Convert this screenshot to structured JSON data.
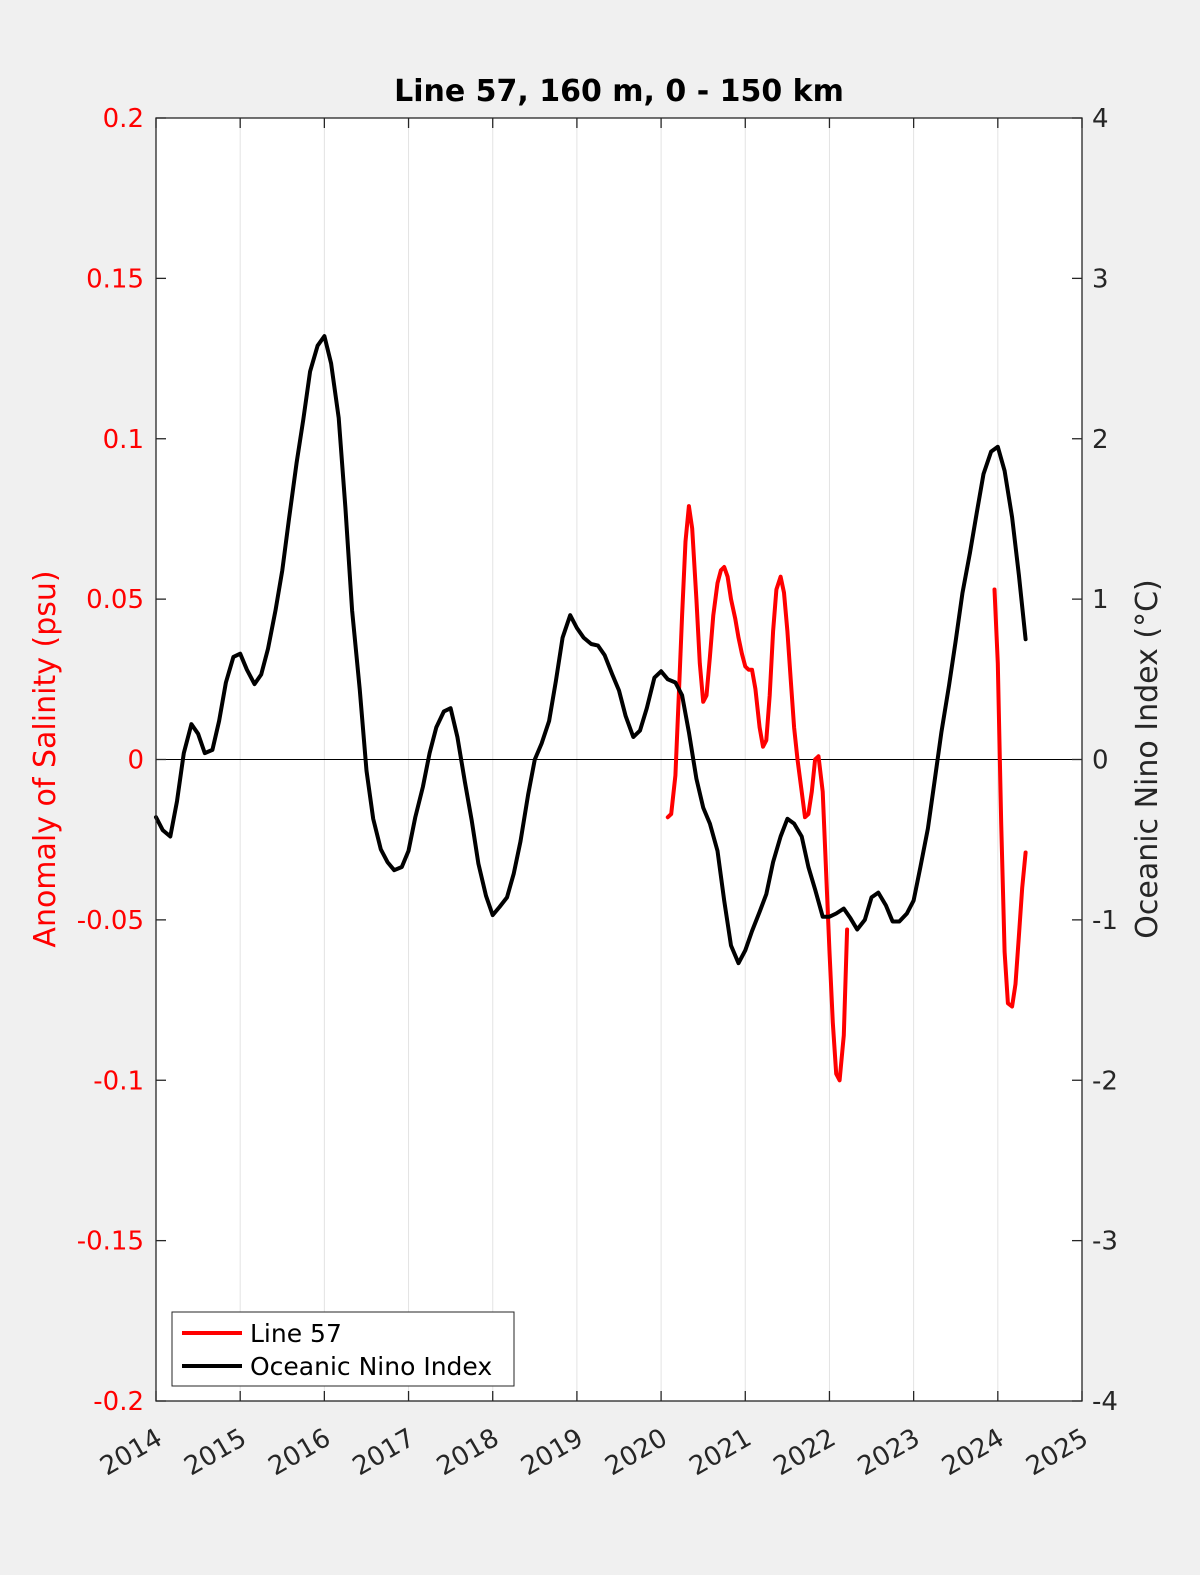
{
  "chart_data": {
    "type": "line",
    "title": "Line 57, 160 m, 0 - 150 km",
    "ylabel_left": "Anomaly of Salinity (psu)",
    "ylabel_right": "Oceanic Nino Index (°C)",
    "xlim": [
      2014,
      2025
    ],
    "ylim_left": [
      -0.2,
      0.2
    ],
    "ylim_right": [
      -4,
      4
    ],
    "x_ticks": [
      "2014",
      "2015",
      "2016",
      "2017",
      "2018",
      "2019",
      "2020",
      "2021",
      "2022",
      "2023",
      "2024",
      "2025"
    ],
    "y_left_ticks": [
      "0.2",
      "0.15",
      "0.1",
      "0.05",
      "0",
      "-0.05",
      "-0.1",
      "-0.15",
      "-0.2"
    ],
    "y_right_ticks": [
      "4",
      "3",
      "2",
      "1",
      "0",
      "-1",
      "-2",
      "-3",
      "-4"
    ],
    "grid": "vertical",
    "legend_position": "bottom-left",
    "colors": {
      "line57": "#ff0000",
      "oni": "#000000",
      "zero_line": "#000000"
    },
    "series": [
      {
        "name": "Line 57",
        "axis": "left",
        "color": "#ff0000",
        "segments": [
          [
            [
              2020.08,
              -0.018
            ],
            [
              2020.12,
              -0.017
            ],
            [
              2020.17,
              -0.005
            ],
            [
              2020.21,
              0.02
            ],
            [
              2020.25,
              0.045
            ],
            [
              2020.29,
              0.068
            ],
            [
              2020.33,
              0.079
            ],
            [
              2020.37,
              0.072
            ],
            [
              2020.42,
              0.05
            ],
            [
              2020.46,
              0.03
            ],
            [
              2020.5,
              0.018
            ],
            [
              2020.54,
              0.02
            ],
            [
              2020.58,
              0.032
            ],
            [
              2020.62,
              0.045
            ],
            [
              2020.67,
              0.055
            ],
            [
              2020.71,
              0.059
            ],
            [
              2020.75,
              0.06
            ],
            [
              2020.79,
              0.057
            ],
            [
              2020.83,
              0.05
            ],
            [
              2020.88,
              0.044
            ],
            [
              2020.92,
              0.038
            ],
            [
              2020.96,
              0.033
            ],
            [
              2021.0,
              0.029
            ],
            [
              2021.04,
              0.028
            ],
            [
              2021.08,
              0.028
            ],
            [
              2021.12,
              0.022
            ],
            [
              2021.17,
              0.01
            ],
            [
              2021.21,
              0.004
            ],
            [
              2021.25,
              0.006
            ],
            [
              2021.29,
              0.02
            ],
            [
              2021.33,
              0.04
            ],
            [
              2021.37,
              0.053
            ],
            [
              2021.42,
              0.057
            ],
            [
              2021.46,
              0.052
            ],
            [
              2021.5,
              0.04
            ],
            [
              2021.54,
              0.025
            ],
            [
              2021.58,
              0.01
            ],
            [
              2021.62,
              0.0
            ],
            [
              2021.67,
              -0.01
            ],
            [
              2021.71,
              -0.018
            ],
            [
              2021.75,
              -0.017
            ],
            [
              2021.79,
              -0.01
            ],
            [
              2021.83,
              0.0
            ],
            [
              2021.87,
              0.001
            ],
            [
              2021.92,
              -0.01
            ],
            [
              2021.96,
              -0.035
            ],
            [
              2022.0,
              -0.06
            ],
            [
              2022.04,
              -0.082
            ],
            [
              2022.08,
              -0.098
            ],
            [
              2022.12,
              -0.1
            ],
            [
              2022.17,
              -0.086
            ],
            [
              2022.21,
              -0.053
            ]
          ],
          [
            [
              2023.96,
              0.053
            ],
            [
              2024.0,
              0.03
            ],
            [
              2024.04,
              -0.02
            ],
            [
              2024.08,
              -0.06
            ],
            [
              2024.12,
              -0.076
            ],
            [
              2024.17,
              -0.077
            ],
            [
              2024.21,
              -0.07
            ],
            [
              2024.25,
              -0.055
            ],
            [
              2024.29,
              -0.04
            ],
            [
              2024.33,
              -0.029
            ]
          ]
        ]
      },
      {
        "name": "Oceanic Nino Index",
        "axis": "right",
        "color": "#000000",
        "points": [
          [
            2014.0,
            -0.36
          ],
          [
            2014.08,
            -0.44
          ],
          [
            2014.17,
            -0.48
          ],
          [
            2014.25,
            -0.26
          ],
          [
            2014.33,
            0.04
          ],
          [
            2014.42,
            0.22
          ],
          [
            2014.5,
            0.16
          ],
          [
            2014.58,
            0.04
          ],
          [
            2014.67,
            0.06
          ],
          [
            2014.75,
            0.24
          ],
          [
            2014.83,
            0.48
          ],
          [
            2014.92,
            0.64
          ],
          [
            2015.0,
            0.66
          ],
          [
            2015.08,
            0.56
          ],
          [
            2015.17,
            0.47
          ],
          [
            2015.25,
            0.53
          ],
          [
            2015.33,
            0.69
          ],
          [
            2015.42,
            0.93
          ],
          [
            2015.5,
            1.18
          ],
          [
            2015.58,
            1.5
          ],
          [
            2015.67,
            1.85
          ],
          [
            2015.75,
            2.12
          ],
          [
            2015.83,
            2.42
          ],
          [
            2015.92,
            2.58
          ],
          [
            2016.0,
            2.64
          ],
          [
            2016.08,
            2.47
          ],
          [
            2016.17,
            2.13
          ],
          [
            2016.25,
            1.57
          ],
          [
            2016.33,
            0.93
          ],
          [
            2016.42,
            0.44
          ],
          [
            2016.5,
            -0.07
          ],
          [
            2016.58,
            -0.37
          ],
          [
            2016.67,
            -0.56
          ],
          [
            2016.75,
            -0.64
          ],
          [
            2016.83,
            -0.69
          ],
          [
            2016.92,
            -0.67
          ],
          [
            2017.0,
            -0.57
          ],
          [
            2017.08,
            -0.36
          ],
          [
            2017.17,
            -0.17
          ],
          [
            2017.25,
            0.04
          ],
          [
            2017.33,
            0.2
          ],
          [
            2017.42,
            0.3
          ],
          [
            2017.5,
            0.32
          ],
          [
            2017.58,
            0.14
          ],
          [
            2017.67,
            -0.14
          ],
          [
            2017.75,
            -0.38
          ],
          [
            2017.83,
            -0.65
          ],
          [
            2017.92,
            -0.85
          ],
          [
            2018.0,
            -0.97
          ],
          [
            2018.08,
            -0.92
          ],
          [
            2018.17,
            -0.86
          ],
          [
            2018.25,
            -0.71
          ],
          [
            2018.33,
            -0.51
          ],
          [
            2018.42,
            -0.22
          ],
          [
            2018.5,
            0.0
          ],
          [
            2018.58,
            0.1
          ],
          [
            2018.67,
            0.24
          ],
          [
            2018.75,
            0.49
          ],
          [
            2018.83,
            0.76
          ],
          [
            2018.92,
            0.9
          ],
          [
            2019.0,
            0.82
          ],
          [
            2019.08,
            0.76
          ],
          [
            2019.17,
            0.72
          ],
          [
            2019.25,
            0.71
          ],
          [
            2019.33,
            0.65
          ],
          [
            2019.42,
            0.53
          ],
          [
            2019.5,
            0.43
          ],
          [
            2019.58,
            0.27
          ],
          [
            2019.67,
            0.14
          ],
          [
            2019.75,
            0.18
          ],
          [
            2019.83,
            0.32
          ],
          [
            2019.92,
            0.51
          ],
          [
            2020.0,
            0.55
          ],
          [
            2020.08,
            0.5
          ],
          [
            2020.17,
            0.48
          ],
          [
            2020.25,
            0.4
          ],
          [
            2020.33,
            0.17
          ],
          [
            2020.42,
            -0.12
          ],
          [
            2020.5,
            -0.3
          ],
          [
            2020.58,
            -0.4
          ],
          [
            2020.67,
            -0.57
          ],
          [
            2020.75,
            -0.88
          ],
          [
            2020.83,
            -1.16
          ],
          [
            2020.92,
            -1.27
          ],
          [
            2021.0,
            -1.19
          ],
          [
            2021.08,
            -1.07
          ],
          [
            2021.17,
            -0.95
          ],
          [
            2021.25,
            -0.84
          ],
          [
            2021.33,
            -0.64
          ],
          [
            2021.42,
            -0.48
          ],
          [
            2021.5,
            -0.37
          ],
          [
            2021.58,
            -0.4
          ],
          [
            2021.67,
            -0.48
          ],
          [
            2021.75,
            -0.67
          ],
          [
            2021.83,
            -0.81
          ],
          [
            2021.92,
            -0.98
          ],
          [
            2022.0,
            -0.98
          ],
          [
            2022.08,
            -0.96
          ],
          [
            2022.17,
            -0.93
          ],
          [
            2022.25,
            -0.99
          ],
          [
            2022.33,
            -1.06
          ],
          [
            2022.42,
            -1.0
          ],
          [
            2022.5,
            -0.86
          ],
          [
            2022.58,
            -0.83
          ],
          [
            2022.67,
            -0.91
          ],
          [
            2022.75,
            -1.01
          ],
          [
            2022.83,
            -1.01
          ],
          [
            2022.92,
            -0.96
          ],
          [
            2023.0,
            -0.88
          ],
          [
            2023.08,
            -0.67
          ],
          [
            2023.17,
            -0.43
          ],
          [
            2023.25,
            -0.13
          ],
          [
            2023.33,
            0.17
          ],
          [
            2023.42,
            0.46
          ],
          [
            2023.5,
            0.74
          ],
          [
            2023.58,
            1.04
          ],
          [
            2023.67,
            1.29
          ],
          [
            2023.75,
            1.54
          ],
          [
            2023.83,
            1.78
          ],
          [
            2023.92,
            1.92
          ],
          [
            2024.0,
            1.95
          ],
          [
            2024.08,
            1.8
          ],
          [
            2024.17,
            1.51
          ],
          [
            2024.25,
            1.15
          ],
          [
            2024.33,
            0.75
          ]
        ]
      }
    ]
  },
  "legend": [
    {
      "label": "Line 57",
      "color": "#ff0000"
    },
    {
      "label": "Oceanic Nino Index",
      "color": "#000000"
    }
  ]
}
